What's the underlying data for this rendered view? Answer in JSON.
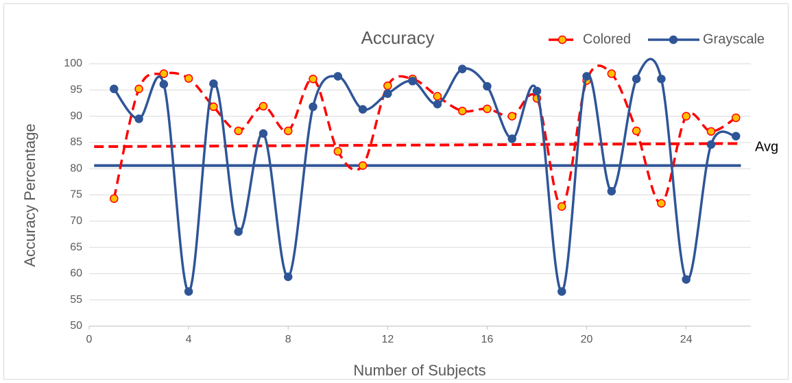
{
  "chart_data": {
    "type": "line",
    "title": "Accuracy",
    "xlabel": "Number of Subjects",
    "ylabel": "Accuracy Percentage",
    "x": [
      1,
      2,
      3,
      4,
      5,
      6,
      7,
      8,
      9,
      10,
      11,
      12,
      13,
      14,
      15,
      16,
      17,
      18,
      19,
      20,
      21,
      22,
      23,
      24,
      25,
      26
    ],
    "series": [
      {
        "name": "Colored",
        "color": "#ff0000",
        "marker_color": "#ffc000",
        "dashed": true,
        "values": [
          74.3,
          95.2,
          98.1,
          97.2,
          91.8,
          87.2,
          91.9,
          87.2,
          97.1,
          83.3,
          80.6,
          95.8,
          97.1,
          93.8,
          91.0,
          91.4,
          90.0,
          93.4,
          72.8,
          96.8,
          98.1,
          87.2,
          73.4,
          90.0,
          87.1,
          89.7
        ]
      },
      {
        "name": "Grayscale",
        "color": "#2f5597",
        "marker_color": "#2f5597",
        "dashed": false,
        "values": [
          95.2,
          89.5,
          96.1,
          56.6,
          96.2,
          68.0,
          86.7,
          59.4,
          91.8,
          97.6,
          91.3,
          94.3,
          96.7,
          92.3,
          99.0,
          95.7,
          85.7,
          94.8,
          56.6,
          97.6,
          75.7,
          97.1,
          97.1,
          58.9,
          84.6,
          86.2
        ]
      }
    ],
    "avg_lines": [
      {
        "color": "#ff0000",
        "dashed": true,
        "x": [
          0.2,
          26.2
        ],
        "values": [
          84.2,
          84.8
        ]
      },
      {
        "color": "#2f5597",
        "dashed": false,
        "x": [
          0.2,
          26.2
        ],
        "values": [
          80.6,
          80.6
        ]
      }
    ],
    "annotation": {
      "text": "Avg",
      "value": 82.2
    },
    "xlim": [
      0,
      26.6
    ],
    "xticks": [
      0,
      4,
      8,
      12,
      16,
      20,
      24
    ],
    "ylim": [
      50,
      100
    ],
    "yticks": [
      50,
      55,
      60,
      65,
      70,
      75,
      80,
      85,
      90,
      95,
      100
    ],
    "grid": true,
    "smooth": true,
    "legend": "top-right"
  }
}
